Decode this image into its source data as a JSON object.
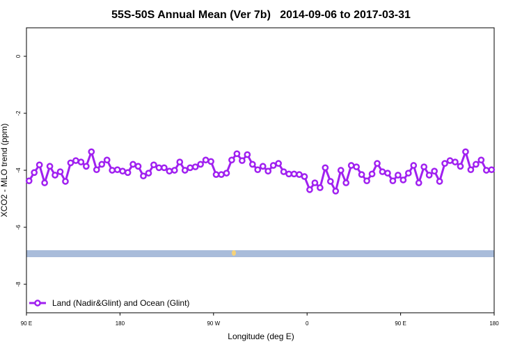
{
  "chart_data": {
    "type": "line",
    "title": "55S-50S Annual Mean (Ver 7b)   2014-09-06 to 2017-03-31",
    "x_label": "Longitude (deg E)",
    "y_label": "XCO2 - MLO trend (ppm)",
    "x": [
      92.5,
      97.5,
      102.5,
      107.5,
      112.5,
      117.5,
      122.5,
      127.5,
      132.5,
      137.5,
      142.5,
      147.5,
      152.5,
      157.5,
      162.5,
      167.5,
      172.5,
      177.5,
      182.5,
      187.5,
      192.5,
      197.5,
      202.5,
      207.5,
      212.5,
      217.5,
      222.5,
      227.5,
      232.5,
      237.5,
      242.5,
      247.5,
      252.5,
      257.5,
      262.5,
      267.5,
      272.5,
      277.5,
      282.5,
      287.5,
      292.5,
      297.5,
      302.5,
      307.5,
      312.5,
      317.5,
      322.5,
      327.5,
      332.5,
      337.5,
      342.5,
      347.5,
      352.5,
      357.5,
      362.5,
      367.5,
      372.5,
      377.5,
      382.5,
      387.5,
      392.5,
      397.5,
      402.5,
      407.5,
      412.5,
      417.5,
      422.5,
      427.5,
      432.5,
      437.5,
      442.5,
      447.5,
      452.5,
      457.5,
      462.5,
      467.5,
      472.5,
      477.5,
      482.5,
      487.5,
      492.5,
      497.5,
      502.5,
      507.5,
      512.5,
      517.5,
      522.5,
      527.5,
      532.5,
      537.5
    ],
    "series": [
      {
        "name": "Land (Nadir&Glint) and Ocean (Glint)",
        "color": "#a020f0",
        "values": [
          -4.37,
          -4.08,
          -3.81,
          -4.44,
          -3.86,
          -4.17,
          -4.05,
          -4.39,
          -3.74,
          -3.66,
          -3.71,
          -3.86,
          -3.35,
          -3.98,
          -3.79,
          -3.64,
          -4.0,
          -3.98,
          -4.03,
          -4.08,
          -3.79,
          -3.86,
          -4.2,
          -4.1,
          -3.81,
          -3.91,
          -3.91,
          -4.03,
          -4.0,
          -3.71,
          -4.0,
          -3.91,
          -3.88,
          -3.79,
          -3.64,
          -3.69,
          -4.15,
          -4.15,
          -4.1,
          -3.64,
          -3.42,
          -3.66,
          -3.45,
          -3.79,
          -3.98,
          -3.86,
          -4.03,
          -3.83,
          -3.76,
          -4.05,
          -4.13,
          -4.13,
          -4.15,
          -4.22,
          -4.68,
          -4.44,
          -4.61,
          -3.91,
          -4.39,
          -4.73,
          -4.0,
          -4.44,
          -3.83,
          -3.88,
          -4.15,
          -4.37,
          -4.13,
          -3.76,
          -4.05,
          -4.1,
          -4.37,
          -4.17,
          -4.34,
          -4.1,
          -3.83,
          -4.44,
          -3.88,
          -4.17,
          -4.03,
          -4.39,
          -3.76,
          -3.66,
          -3.71,
          -3.86,
          -3.35,
          -3.98,
          -3.79,
          -3.64,
          -4.0,
          -3.98
        ]
      }
    ],
    "xlim": [
      90,
      540
    ],
    "xticks": [
      {
        "value": 90,
        "label": "90 E"
      },
      180,
      {
        "value": 270,
        "label": "90 W"
      },
      {
        "value": 360,
        "label": "0"
      },
      {
        "value": 450,
        "label": "90 E"
      },
      {
        "value": 540,
        "label": "180"
      }
    ],
    "ylim": [
      -9,
      1
    ],
    "yticks": [
      0,
      -2,
      -4,
      -6,
      -8
    ],
    "legend": "bottom-left"
  }
}
